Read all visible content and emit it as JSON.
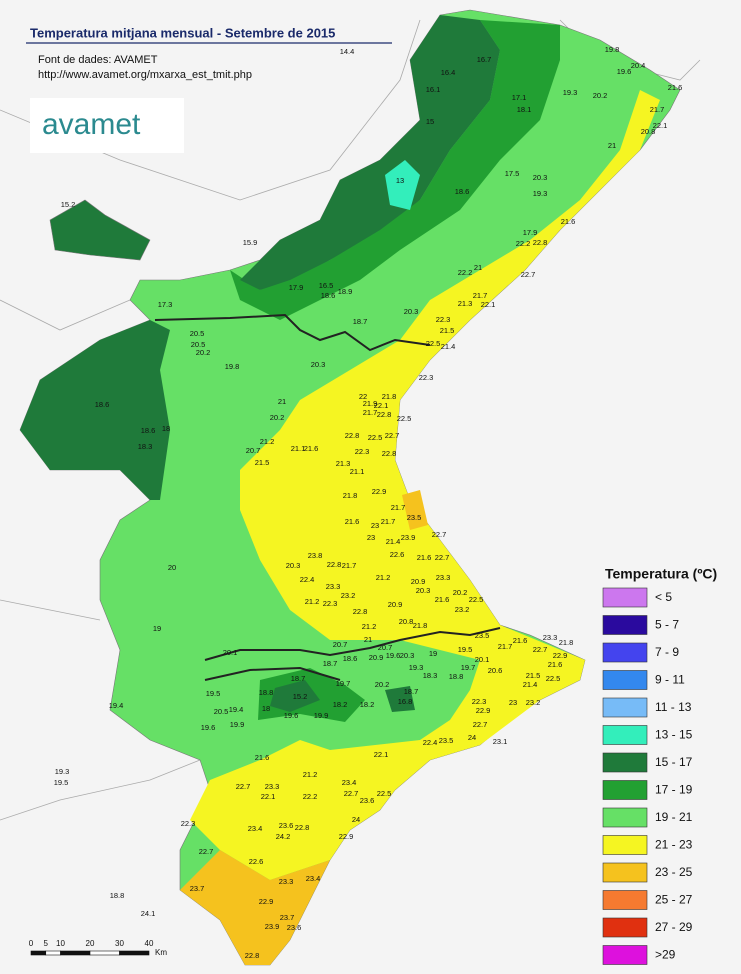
{
  "title": "Temperatura mitjana mensual - Setembre de 2015",
  "source": "Font de dades: AVAMET",
  "url": "http://www.avamet.org/mxarxa_est_tmit.php",
  "logo": "avamet",
  "legend": {
    "title": "Temperatura (ºC)",
    "items": [
      {
        "label": "< 5",
        "color": "#cc77ee"
      },
      {
        "label": "5 - 7",
        "color": "#2a0a9e"
      },
      {
        "label": "7 - 9",
        "color": "#4444ee"
      },
      {
        "label": "9 - 11",
        "color": "#3388ee"
      },
      {
        "label": "11 - 13",
        "color": "#77bbf7"
      },
      {
        "label": "13 - 15",
        "color": "#33eebb"
      },
      {
        "label": "15 - 17",
        "color": "#1f7a3a"
      },
      {
        "label": "17 - 19",
        "color": "#22a032"
      },
      {
        "label": "19 - 21",
        "color": "#66e066"
      },
      {
        "label": "21 - 23",
        "color": "#f5f522"
      },
      {
        "label": "23 - 25",
        "color": "#f5c21e"
      },
      {
        "label": "25 - 27",
        "color": "#f57a30"
      },
      {
        "label": "27 - 29",
        "color": "#e03010"
      },
      {
        "label": ">29",
        "color": "#dd11dd"
      }
    ]
  },
  "scale": {
    "ticks": [
      0,
      5,
      10,
      20,
      30,
      40
    ],
    "unit": "Km"
  },
  "stations": [
    14.4,
    19.8,
    20.4,
    19.6,
    21.6,
    16.4,
    16.7,
    16.1,
    17.1,
    19.3,
    20.2,
    18.1,
    21.7,
    15,
    20.8,
    22.1,
    21,
    13,
    20.3,
    17.5,
    18.6,
    19.3,
    15.2,
    21.6,
    17.9,
    22.2,
    22.8,
    15.9,
    22.7,
    22.2,
    21,
    17.9,
    16.5,
    18.6,
    18.9,
    21.7,
    21.3,
    22.1,
    17.3,
    20.3,
    18.7,
    22.3,
    21.5,
    22.5,
    21.4,
    20.5,
    20.5,
    20.2,
    19.8,
    20.3,
    22.3,
    18.6,
    21,
    22,
    21.8,
    21.9,
    22.1,
    21.7,
    20.2,
    22.8,
    22.5,
    18.6,
    18,
    22.8,
    22.5,
    22.7,
    18.3,
    21.2,
    20.7,
    21.1,
    21.6,
    22.3,
    22.8,
    21.5,
    21.3,
    21.1,
    21.8,
    22.9,
    21.7,
    23.5,
    21.6,
    23,
    21.7,
    21.4,
    23,
    23.9,
    22.7,
    22.6,
    21.6,
    22.7,
    23.8,
    22.8,
    21.7,
    20,
    20.3,
    22.4,
    23.3,
    21.2,
    23.3,
    20.9,
    20.3,
    20.2,
    23.2,
    21.6,
    22.5,
    21.2,
    22.3,
    20.9,
    23.2,
    22.8,
    21.2,
    20.8,
    21.8,
    19,
    20.7,
    21,
    20.7,
    23.5,
    23.3,
    21.8,
    20.1,
    18.7,
    18.6,
    20.9,
    19.6,
    20.3,
    19,
    19.5,
    20.1,
    21.6,
    21.7,
    22.7,
    22.9,
    18.7,
    19.7,
    20.2,
    19.3,
    18.3,
    18.8,
    19.7,
    20.6,
    21.5,
    21.6,
    21.4,
    22.5,
    18.8,
    15.2,
    18.2,
    18.2,
    18.7,
    16.8,
    22.3,
    19.5,
    19.4,
    18,
    19.6,
    19.9,
    20.5,
    19.4,
    22.9,
    23,
    23.2,
    22.7,
    19.6,
    19.9,
    23.5,
    22.4,
    23.1,
    24,
    21.6,
    22.1,
    19.3,
    19.5,
    21.2,
    23.4,
    22.7,
    23.3,
    22.1,
    22.2,
    22.7,
    23.6,
    22.5,
    22.3,
    24,
    23.4,
    23.6,
    22.8,
    24.2,
    22.9,
    22.7,
    22.6,
    23.3,
    23.4,
    23.7,
    18.8,
    22.9,
    24.1,
    23.7,
    23.9,
    23.6,
    22.8
  ]
}
